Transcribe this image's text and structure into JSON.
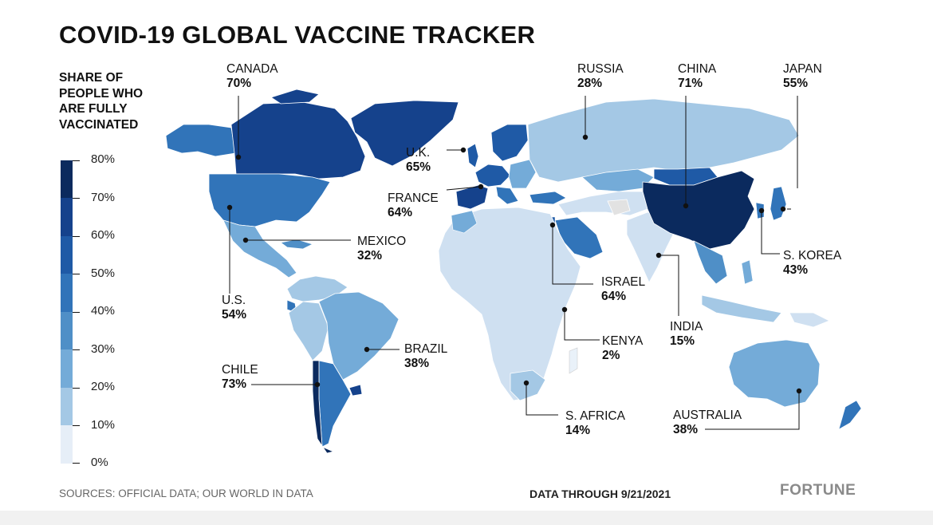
{
  "title": "COVID-19 GLOBAL VACCINE TRACKER",
  "legend": {
    "title": "SHARE OF PEOPLE WHO ARE FULLY VACCINATED",
    "bins": [
      {
        "label": "80%",
        "color": "#0b2a5e"
      },
      {
        "label": "70%",
        "color": "#15428c"
      },
      {
        "label": "60%",
        "color": "#1f5aa6"
      },
      {
        "label": "50%",
        "color": "#3174b9"
      },
      {
        "label": "40%",
        "color": "#4f8fc7"
      },
      {
        "label": "30%",
        "color": "#74abd8"
      },
      {
        "label": "20%",
        "color": "#a4c8e5"
      },
      {
        "label": "10%",
        "color": "#cfe0f1"
      },
      {
        "label": "0%",
        "color": "#e9f1f9"
      }
    ]
  },
  "countries": {
    "canada": {
      "name": "CANADA",
      "pct": "70%",
      "value": 70
    },
    "russia": {
      "name": "RUSSIA",
      "pct": "28%",
      "value": 28
    },
    "china": {
      "name": "CHINA",
      "pct": "71%",
      "value": 71
    },
    "japan": {
      "name": "JAPAN",
      "pct": "55%",
      "value": 55
    },
    "uk": {
      "name": "U.K.",
      "pct": "65%",
      "value": 65
    },
    "france": {
      "name": "FRANCE",
      "pct": "64%",
      "value": 64
    },
    "mexico": {
      "name": "MEXICO",
      "pct": "32%",
      "value": 32
    },
    "us": {
      "name": "U.S.",
      "pct": "54%",
      "value": 54
    },
    "israel": {
      "name": "ISRAEL",
      "pct": "64%",
      "value": 64
    },
    "skorea": {
      "name": "S. KOREA",
      "pct": "43%",
      "value": 43
    },
    "india": {
      "name": "INDIA",
      "pct": "15%",
      "value": 15
    },
    "kenya": {
      "name": "KENYA",
      "pct": "2%",
      "value": 2
    },
    "brazil": {
      "name": "BRAZIL",
      "pct": "38%",
      "value": 38
    },
    "chile": {
      "name": "CHILE",
      "pct": "73%",
      "value": 73
    },
    "safrica": {
      "name": "S. AFRICA",
      "pct": "14%",
      "value": 14
    },
    "australia": {
      "name": "AUSTRALIA",
      "pct": "38%",
      "value": 38
    }
  },
  "footer": {
    "sources": "SOURCES: OFFICIAL DATA; OUR WORLD IN DATA",
    "date": "DATA THROUGH 9/21/2021",
    "brand": "FORTUNE"
  }
}
